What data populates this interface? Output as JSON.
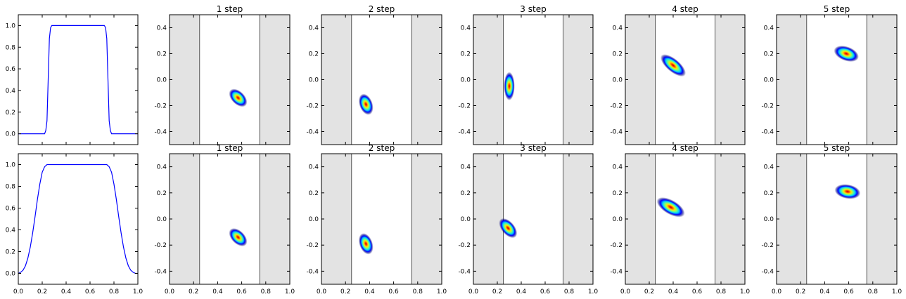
{
  "chart_data": [
    {
      "panel": "r0c0",
      "type": "line",
      "xlim": [
        0.0,
        1.0
      ],
      "ylim": [
        -0.1,
        1.1
      ],
      "xticks": [],
      "xtick_labels_shown": false,
      "yticks": [
        "1.0",
        "0.8",
        "0.6",
        "0.4",
        "0.2",
        "0.0"
      ],
      "series": [
        {
          "color": "#0000ff",
          "x": [
            0.0,
            0.22,
            0.23,
            0.24,
            0.25,
            0.26,
            0.27,
            0.28,
            0.72,
            0.73,
            0.74,
            0.75,
            0.76,
            0.77,
            0.78,
            1.0
          ],
          "y": [
            0.0,
            0.0,
            0.03,
            0.12,
            0.5,
            0.88,
            0.98,
            1.0,
            1.0,
            0.98,
            0.88,
            0.5,
            0.12,
            0.03,
            0.0,
            0.0
          ]
        }
      ]
    },
    {
      "panel": "r0c1",
      "type": "heatmap",
      "title": "1 step",
      "xlim": [
        0,
        1
      ],
      "ylim": [
        -0.5,
        0.5
      ],
      "xticks": [],
      "xtick_labels_shown": false,
      "yticks": [
        "0.4",
        "0.2",
        "0.0",
        "-0.2",
        "-0.4"
      ],
      "shaded_x_regions": [
        [
          0,
          0.25
        ],
        [
          0.75,
          1.0
        ]
      ],
      "vlines": [
        0.25,
        0.75
      ],
      "blob": {
        "cx": 0.57,
        "cy": -0.14,
        "rx": 0.055,
        "ry": 0.085,
        "angle": 45
      }
    },
    {
      "panel": "r0c2",
      "type": "heatmap",
      "title": "2 step",
      "xlim": [
        0,
        1
      ],
      "ylim": [
        -0.5,
        0.5
      ],
      "xticks": [],
      "xtick_labels_shown": false,
      "yticks": [
        "0.4",
        "0.2",
        "0.0",
        "-0.2",
        "-0.4"
      ],
      "shaded_x_regions": [
        [
          0,
          0.25
        ],
        [
          0.75,
          1.0
        ]
      ],
      "vlines": [
        0.25,
        0.75
      ],
      "blob": {
        "cx": 0.37,
        "cy": -0.19,
        "rx": 0.055,
        "ry": 0.085,
        "angle": 20
      }
    },
    {
      "panel": "r0c3",
      "type": "heatmap",
      "title": "3 step",
      "xlim": [
        0,
        1
      ],
      "ylim": [
        -0.5,
        0.5
      ],
      "xticks": [],
      "xtick_labels_shown": false,
      "yticks": [
        "0.4",
        "0.2",
        "0.0",
        "-0.2",
        "-0.4"
      ],
      "shaded_x_regions": [
        [
          0,
          0.25
        ],
        [
          0.75,
          1.0
        ]
      ],
      "vlines": [
        0.25,
        0.75
      ],
      "blob": {
        "cx": 0.3,
        "cy": -0.05,
        "rx": 0.045,
        "ry": 0.11,
        "angle": 0,
        "clip_left": 0.25
      }
    },
    {
      "panel": "r0c4",
      "type": "heatmap",
      "title": "4 step",
      "xlim": [
        0,
        1
      ],
      "ylim": [
        -0.5,
        0.5
      ],
      "xticks": [],
      "xtick_labels_shown": false,
      "yticks": [
        "0.4",
        "0.2",
        "0.0",
        "-0.2",
        "-0.4"
      ],
      "shaded_x_regions": [
        [
          0,
          0.25
        ],
        [
          0.75,
          1.0
        ]
      ],
      "vlines": [
        0.25,
        0.75
      ],
      "blob": {
        "cx": 0.4,
        "cy": 0.11,
        "rx": 0.055,
        "ry": 0.12,
        "angle": 50
      }
    },
    {
      "panel": "r0c5",
      "type": "heatmap",
      "title": "5 step",
      "xlim": [
        0,
        1
      ],
      "ylim": [
        -0.5,
        0.5
      ],
      "xticks": [],
      "xtick_labels_shown": false,
      "yticks": [
        "0.4",
        "0.2",
        "0.0",
        "-0.2",
        "-0.4"
      ],
      "shaded_x_regions": [
        [
          0,
          0.25
        ],
        [
          0.75,
          1.0
        ]
      ],
      "vlines": [
        0.25,
        0.75
      ],
      "blob": {
        "cx": 0.58,
        "cy": 0.2,
        "rx": 0.06,
        "ry": 0.1,
        "angle": 70
      }
    },
    {
      "panel": "r1c0",
      "type": "line",
      "xlim": [
        0.0,
        1.0
      ],
      "ylim": [
        -0.1,
        1.1
      ],
      "xticks": [
        "0.0",
        "0.2",
        "0.4",
        "0.6",
        "0.8",
        "1.0"
      ],
      "yticks": [
        "1.0",
        "0.8",
        "0.6",
        "0.4",
        "0.2",
        "0.0"
      ],
      "series": [
        {
          "color": "#0000ff",
          "x": [
            0.0,
            0.02,
            0.04,
            0.06,
            0.08,
            0.1,
            0.12,
            0.14,
            0.16,
            0.18,
            0.2,
            0.22,
            0.24,
            0.26,
            0.28,
            0.3,
            0.7,
            0.72,
            0.74,
            0.76,
            0.78,
            0.8,
            0.82,
            0.84,
            0.86,
            0.88,
            0.9,
            0.92,
            0.94,
            0.96,
            0.98,
            1.0
          ],
          "y": [
            0.0,
            0.01,
            0.03,
            0.07,
            0.14,
            0.24,
            0.37,
            0.52,
            0.68,
            0.82,
            0.93,
            0.98,
            1.0,
            1.0,
            1.0,
            1.0,
            1.0,
            1.0,
            1.0,
            0.98,
            0.93,
            0.82,
            0.68,
            0.52,
            0.37,
            0.24,
            0.14,
            0.07,
            0.03,
            0.01,
            0.0,
            0.0
          ]
        }
      ]
    },
    {
      "panel": "r1c1",
      "type": "heatmap",
      "title": "1 step",
      "xlim": [
        0,
        1
      ],
      "ylim": [
        -0.5,
        0.5
      ],
      "xticks": [
        "0.0",
        "0.2",
        "0.4",
        "0.6",
        "0.8",
        "1.0"
      ],
      "yticks": [
        "0.4",
        "0.2",
        "0.0",
        "-0.2",
        "-0.4"
      ],
      "shaded_x_regions": [
        [
          0,
          0.25
        ],
        [
          0.75,
          1.0
        ]
      ],
      "vlines": [
        0.25,
        0.75
      ],
      "blob": {
        "cx": 0.57,
        "cy": -0.14,
        "rx": 0.055,
        "ry": 0.085,
        "angle": 45
      }
    },
    {
      "panel": "r1c2",
      "type": "heatmap",
      "title": "2 step",
      "xlim": [
        0,
        1
      ],
      "ylim": [
        -0.5,
        0.5
      ],
      "xticks": [
        "0.0",
        "0.2",
        "0.4",
        "0.6",
        "0.8",
        "1.0"
      ],
      "yticks": [
        "0.4",
        "0.2",
        "0.0",
        "-0.2",
        "-0.4"
      ],
      "shaded_x_regions": [
        [
          0,
          0.25
        ],
        [
          0.75,
          1.0
        ]
      ],
      "vlines": [
        0.25,
        0.75
      ],
      "blob": {
        "cx": 0.37,
        "cy": -0.19,
        "rx": 0.055,
        "ry": 0.085,
        "angle": 20
      }
    },
    {
      "panel": "r1c3",
      "type": "heatmap",
      "title": "3 step",
      "xlim": [
        0,
        1
      ],
      "ylim": [
        -0.5,
        0.5
      ],
      "xticks": [
        "0.0",
        "0.2",
        "0.4",
        "0.6",
        "0.8",
        "1.0"
      ],
      "yticks": [
        "0.4",
        "0.2",
        "0.0",
        "-0.2",
        "-0.4"
      ],
      "shaded_x_regions": [
        [
          0,
          0.25
        ],
        [
          0.75,
          1.0
        ]
      ],
      "vlines": [
        0.25,
        0.75
      ],
      "blob": {
        "cx": 0.29,
        "cy": -0.07,
        "rx": 0.055,
        "ry": 0.09,
        "angle": 40
      }
    },
    {
      "panel": "r1c4",
      "type": "heatmap",
      "title": "4 step",
      "xlim": [
        0,
        1
      ],
      "ylim": [
        -0.5,
        0.5
      ],
      "xticks": [
        "0.0",
        "0.2",
        "0.4",
        "0.6",
        "0.8",
        "1.0"
      ],
      "yticks": [
        "0.4",
        "0.2",
        "0.0",
        "-0.2",
        "-0.4"
      ],
      "shaded_x_regions": [
        [
          0,
          0.25
        ],
        [
          0.75,
          1.0
        ]
      ],
      "vlines": [
        0.25,
        0.75
      ],
      "blob": {
        "cx": 0.38,
        "cy": 0.09,
        "rx": 0.06,
        "ry": 0.12,
        "angle": 60
      }
    },
    {
      "panel": "r1c5",
      "type": "heatmap",
      "title": "5 step",
      "xlim": [
        0,
        1
      ],
      "ylim": [
        -0.5,
        0.5
      ],
      "xticks": [
        "0.0",
        "0.2",
        "0.4",
        "0.6",
        "0.8",
        "1.0"
      ],
      "yticks": [
        "0.4",
        "0.2",
        "0.0",
        "-0.2",
        "-0.4"
      ],
      "shaded_x_regions": [
        [
          0,
          0.25
        ],
        [
          0.75,
          1.0
        ]
      ],
      "vlines": [
        0.25,
        0.75
      ],
      "blob": {
        "cx": 0.59,
        "cy": 0.21,
        "rx": 0.06,
        "ry": 0.1,
        "angle": 80
      }
    }
  ],
  "colors": {
    "line": "#0000ff",
    "shade": "#e3e3e3",
    "colormap": [
      "#00007f",
      "#0000ff",
      "#00d4ff",
      "#7cff79",
      "#ffe600",
      "#ff3b00",
      "#c00000"
    ]
  }
}
